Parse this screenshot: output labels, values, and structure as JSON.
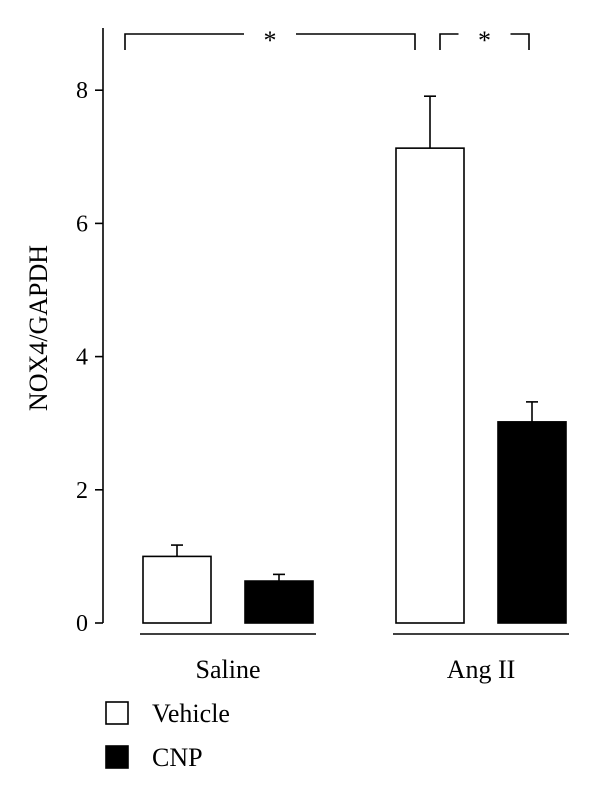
{
  "chart_data": {
    "type": "bar",
    "title": "",
    "xlabel": "",
    "ylabel": "NOX4/GAPDH",
    "ylim": [
      0,
      9
    ],
    "yticks": [
      0,
      2,
      4,
      6,
      8
    ],
    "grid": false,
    "legend_position": "bottom-left",
    "categories": [
      "Saline",
      "Ang II"
    ],
    "series": [
      {
        "name": "Vehicle",
        "color": "#ffffff",
        "values": [
          1.0,
          7.13
        ],
        "errors": [
          0.17,
          0.78
        ]
      },
      {
        "name": "CNP",
        "color": "#000000",
        "values": [
          0.63,
          3.02
        ],
        "errors": [
          0.1,
          0.3
        ]
      }
    ],
    "annotations": [
      {
        "type": "significance",
        "label": "*",
        "between": [
          "Saline Vehicle",
          "Ang II Vehicle"
        ]
      },
      {
        "type": "significance",
        "label": "*",
        "between": [
          "Ang II Vehicle",
          "Ang II CNP"
        ]
      }
    ]
  }
}
